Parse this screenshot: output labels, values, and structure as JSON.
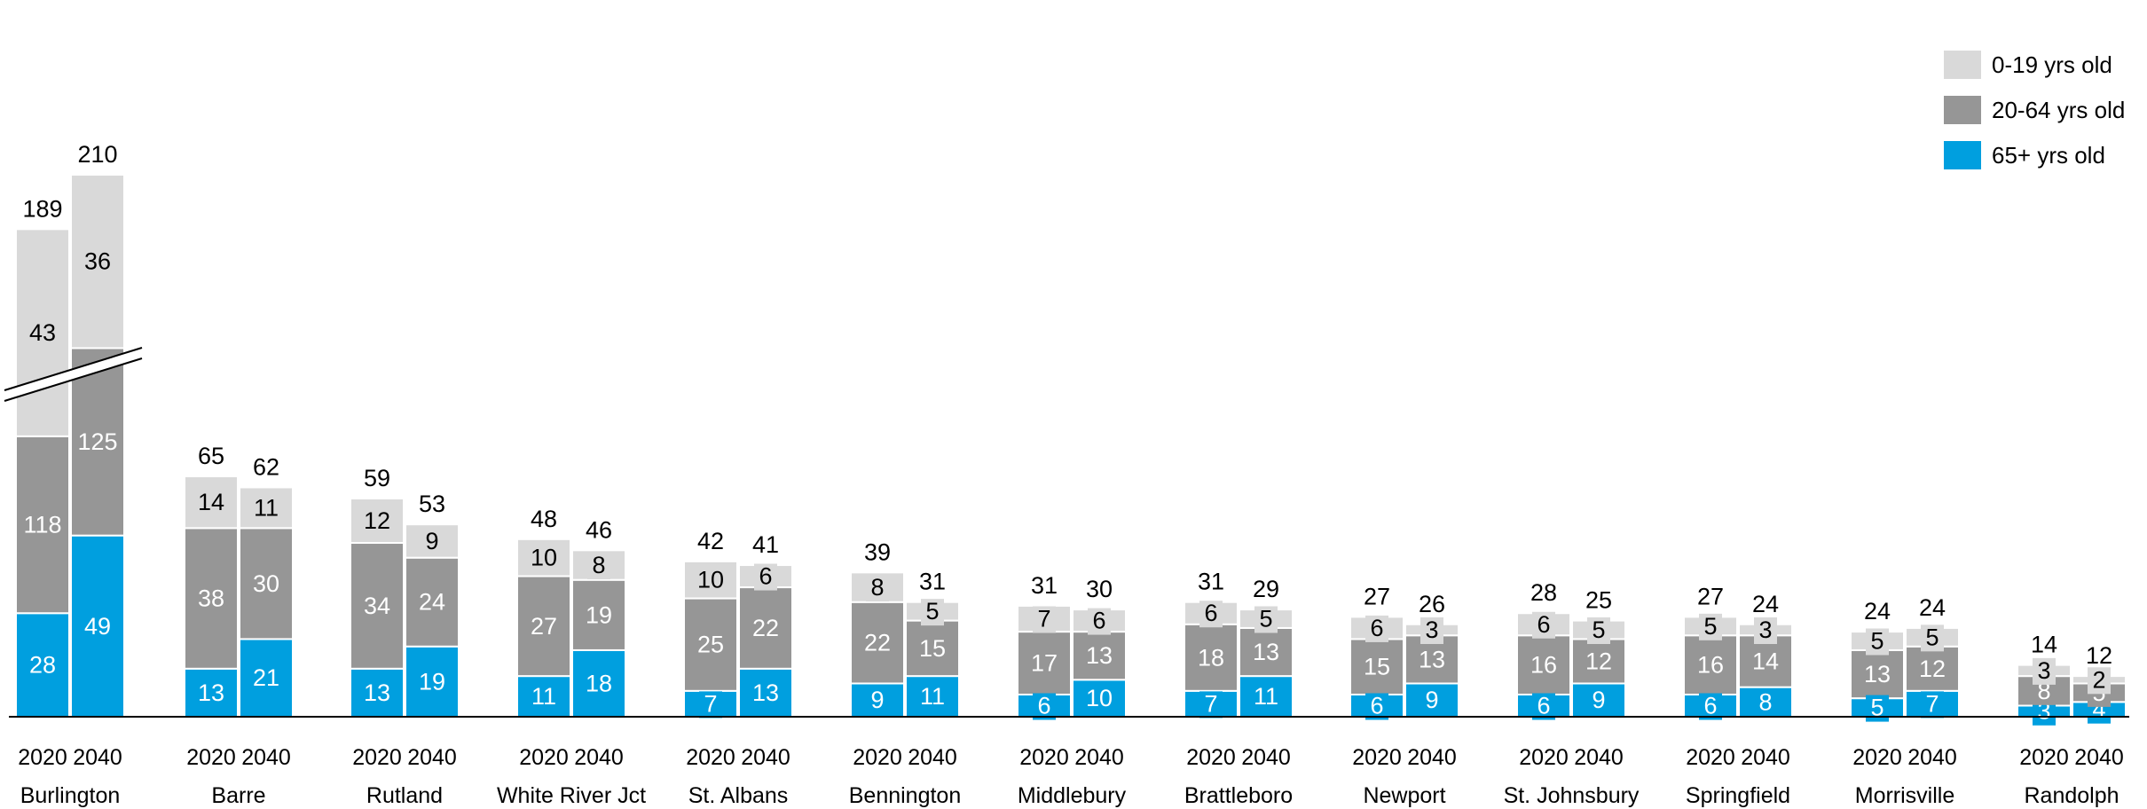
{
  "chart_data": {
    "type": "bar",
    "stacked": true,
    "broken_axis": "Burlington",
    "legend_position": "top-right",
    "series_colors": {
      "0-19 yrs old": "#d9d9d9",
      "20-64 yrs old": "#969696",
      "65+ yrs old": "#009fdf"
    },
    "legend": [
      {
        "name": "0-19 yrs old",
        "color": "#d9d9d9"
      },
      {
        "name": "20-64 yrs old",
        "color": "#969696"
      },
      {
        "name": "65+ yrs old",
        "color": "#009fdf"
      }
    ],
    "groups": [
      {
        "name": "Burlington",
        "bars": [
          {
            "year": "2020",
            "total": 189,
            "young": 43,
            "working": 118,
            "senior": 28
          },
          {
            "year": "2040",
            "total": 210,
            "young": 36,
            "working": 125,
            "senior": 49
          }
        ]
      },
      {
        "name": "Barre",
        "bars": [
          {
            "year": "2020",
            "total": 65,
            "young": 14,
            "working": 38,
            "senior": 13
          },
          {
            "year": "2040",
            "total": 62,
            "young": 11,
            "working": 30,
            "senior": 21
          }
        ]
      },
      {
        "name": "Rutland",
        "bars": [
          {
            "year": "2020",
            "total": 59,
            "young": 12,
            "working": 34,
            "senior": 13
          },
          {
            "year": "2040",
            "total": 53,
            "young": 9,
            "working": 24,
            "senior": 19
          }
        ]
      },
      {
        "name": "White River Jct",
        "bars": [
          {
            "year": "2020",
            "total": 48,
            "young": 10,
            "working": 27,
            "senior": 11
          },
          {
            "year": "2040",
            "total": 46,
            "young": 8,
            "working": 19,
            "senior": 18
          }
        ]
      },
      {
        "name": "St. Albans",
        "bars": [
          {
            "year": "2020",
            "total": 42,
            "young": 10,
            "working": 25,
            "senior": 7
          },
          {
            "year": "2040",
            "total": 41,
            "young": 6,
            "working": 22,
            "senior": 13
          }
        ]
      },
      {
        "name": "Bennington",
        "bars": [
          {
            "year": "2020",
            "total": 39,
            "young": 8,
            "working": 22,
            "senior": 9
          },
          {
            "year": "2040",
            "total": 31,
            "young": 5,
            "working": 15,
            "senior": 11
          }
        ]
      },
      {
        "name": "Middlebury",
        "bars": [
          {
            "year": "2020",
            "total": 31,
            "young": 7,
            "working": 17,
            "senior": 6
          },
          {
            "year": "2040",
            "total": 30,
            "young": 6,
            "working": 13,
            "senior": 10
          }
        ]
      },
      {
        "name": "Brattleboro",
        "bars": [
          {
            "year": "2020",
            "total": 31,
            "young": 6,
            "working": 18,
            "senior": 7
          },
          {
            "year": "2040",
            "total": 29,
            "young": 5,
            "working": 13,
            "senior": 11
          }
        ]
      },
      {
        "name": "Newport",
        "bars": [
          {
            "year": "2020",
            "total": 27,
            "young": 6,
            "working": 15,
            "senior": 6
          },
          {
            "year": "2040",
            "total": 26,
            "young": 3,
            "working": 13,
            "senior": 9
          }
        ]
      },
      {
        "name": "St. Johnsbury",
        "bars": [
          {
            "year": "2020",
            "total": 28,
            "young": 6,
            "working": 16,
            "senior": 6
          },
          {
            "year": "2040",
            "total": 25,
            "young": 5,
            "working": 12,
            "senior": 9
          }
        ]
      },
      {
        "name": "Springfield",
        "bars": [
          {
            "year": "2020",
            "total": 27,
            "young": 5,
            "working": 16,
            "senior": 6
          },
          {
            "year": "2040",
            "total": 24,
            "young": 3,
            "working": 14,
            "senior": 8
          }
        ]
      },
      {
        "name": "Morrisville",
        "bars": [
          {
            "year": "2020",
            "total": 24,
            "young": 5,
            "working": 13,
            "senior": 5
          },
          {
            "year": "2040",
            "total": 24,
            "young": 5,
            "working": 12,
            "senior": 7
          }
        ]
      },
      {
        "name": "Randolph",
        "bars": [
          {
            "year": "2020",
            "total": 14,
            "young": 3,
            "working": 8,
            "senior": 3
          },
          {
            "year": "2040",
            "total": 12,
            "young": 2,
            "working": 5,
            "senior": 4
          }
        ]
      }
    ]
  }
}
